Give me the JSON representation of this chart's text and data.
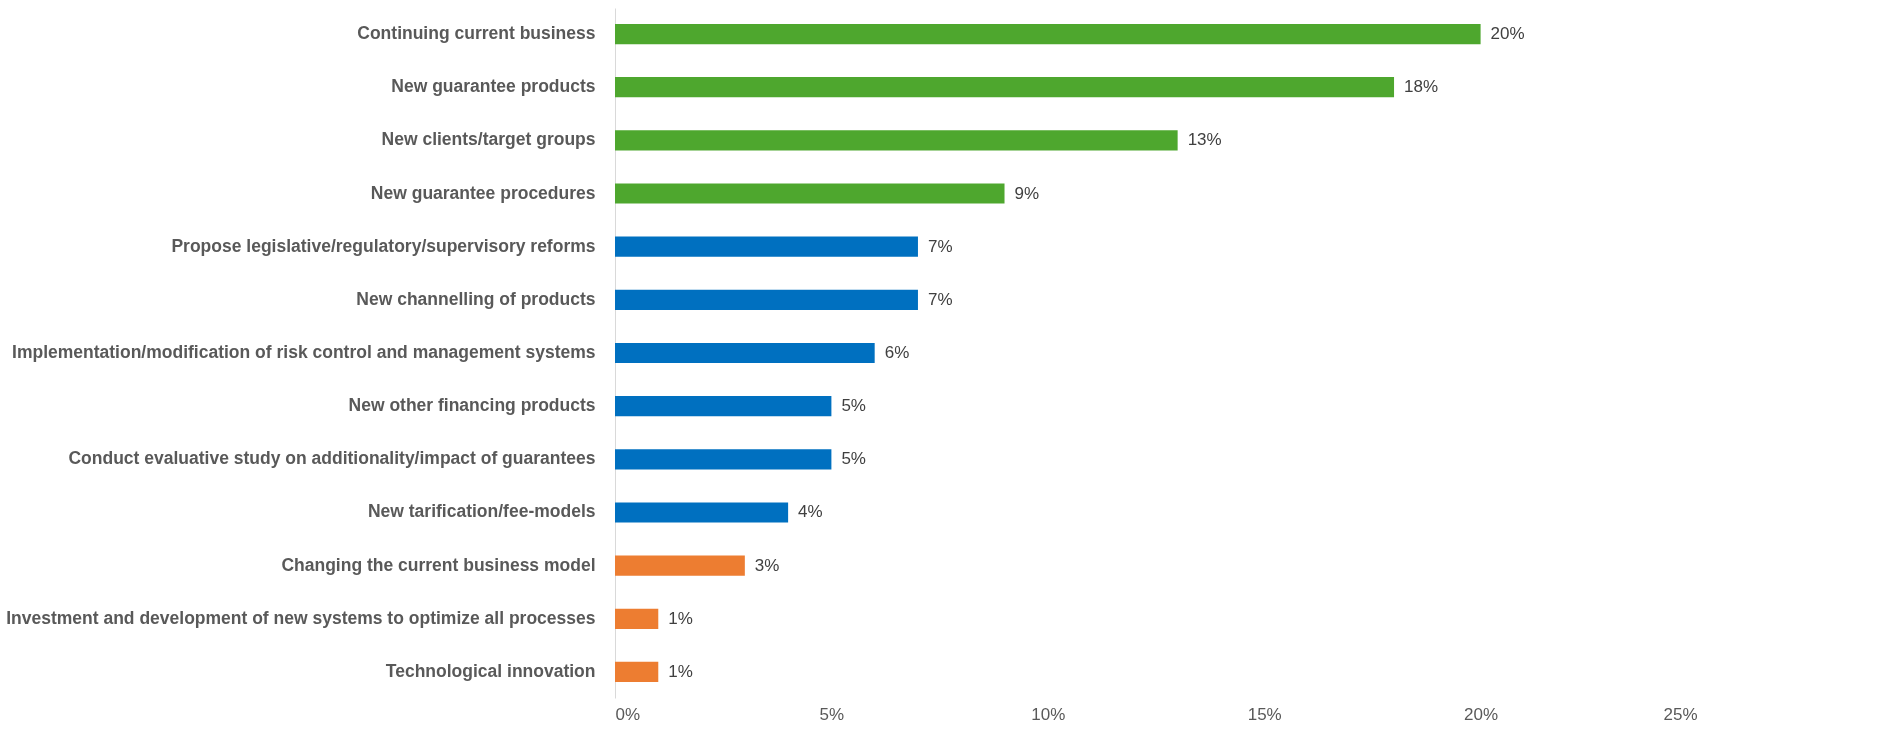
{
  "chart_data": {
    "type": "bar",
    "orientation": "horizontal",
    "categories": [
      "Continuing current business",
      "New guarantee products",
      "New clients/target groups",
      "New guarantee procedures",
      "Propose legislative/regulatory/supervisory reforms",
      "New channelling of products",
      "Implementation/modification of risk control and management systems",
      "New other financing products",
      "Conduct evaluative study on additionality/impact of guarantees",
      "New tarification/fee-models",
      "Changing the current business model",
      "Investment and development of new systems to optimize all processes",
      "Technological innovation"
    ],
    "values": [
      20,
      18,
      13,
      9,
      7,
      7,
      6,
      5,
      5,
      4,
      3,
      1,
      1
    ],
    "value_labels": [
      "20%",
      "18%",
      "13%",
      "9%",
      "7%",
      "7%",
      "6%",
      "5%",
      "5%",
      "4%",
      "3%",
      "1%",
      "1%"
    ],
    "colors": [
      "#4ea72e",
      "#4ea72e",
      "#4ea72e",
      "#4ea72e",
      "#0070c0",
      "#0070c0",
      "#0070c0",
      "#0070c0",
      "#0070c0",
      "#0070c0",
      "#ed7d31",
      "#ed7d31",
      "#ed7d31"
    ],
    "xlim": [
      0,
      25
    ],
    "xticks": [
      {
        "value": 0,
        "label": "0%"
      },
      {
        "value": 5,
        "label": "5%"
      },
      {
        "value": 10,
        "label": "10%"
      },
      {
        "value": 15,
        "label": "15%"
      },
      {
        "value": 20,
        "label": "20%"
      },
      {
        "value": 25,
        "label": "25%"
      }
    ],
    "grid": false,
    "legend": false
  }
}
